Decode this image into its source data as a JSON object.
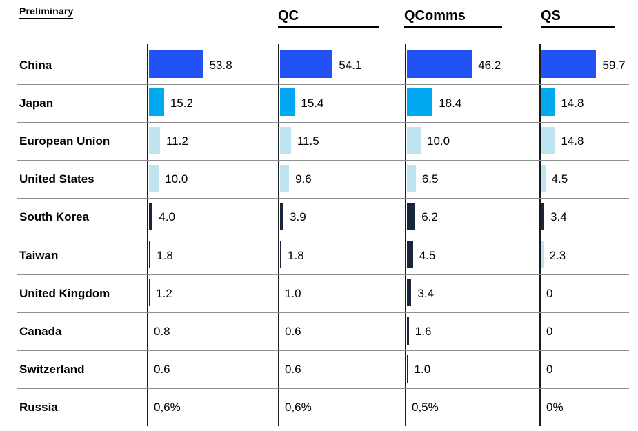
{
  "preliminary_label": "Preliminary",
  "palette": {
    "royal": "#2252F5",
    "cyan": "#00A8F0",
    "light": "#BDE4EF",
    "navy": "#18263C"
  },
  "chart_data": {
    "type": "bar",
    "orientation": "horizontal",
    "title": "Preliminary",
    "xlabel": "",
    "ylabel": "",
    "legend": false,
    "grid": "row-separators",
    "value_unit": "percent share",
    "categories": [
      "China",
      "Japan",
      "European Union",
      "United States",
      "South Korea",
      "Taiwan",
      "United Kingdom",
      "Canada",
      "Switzerland",
      "Russia"
    ],
    "series": [
      {
        "name": "Preliminary",
        "header": "",
        "values": [
          53.8,
          15.2,
          11.2,
          10.0,
          4.0,
          1.8,
          1.2,
          0.8,
          0.6,
          0.6
        ],
        "labels": [
          "53.8",
          "15.2",
          "11.2",
          "10.0",
          "4.0",
          "1.8",
          "1.2",
          "0.8",
          "0.6",
          "0,6%"
        ],
        "colors": [
          "royal",
          "cyan",
          "light",
          "light",
          "navy",
          "navy",
          "navy",
          "navy",
          "navy",
          "navy"
        ]
      },
      {
        "name": "QC",
        "header": "QC",
        "values": [
          54.1,
          15.4,
          11.5,
          9.6,
          3.9,
          1.8,
          1.0,
          0.6,
          0.6,
          0.6
        ],
        "labels": [
          "54.1",
          "15.4",
          "11.5",
          "9.6",
          "3.9",
          "1.8",
          "1.0",
          "0.6",
          "0.6",
          "0,6%"
        ],
        "colors": [
          "royal",
          "cyan",
          "light",
          "light",
          "navy",
          "navy",
          "navy",
          "navy",
          "navy",
          "navy"
        ]
      },
      {
        "name": "QComms",
        "header": "QComms",
        "values": [
          46.2,
          18.4,
          10.0,
          6.5,
          6.2,
          4.5,
          3.4,
          1.6,
          1.0,
          0.5
        ],
        "labels": [
          "46.2",
          "18.4",
          "10.0",
          "6.5",
          "6.2",
          "4.5",
          "3.4",
          "1.6",
          "1.0",
          "0,5%"
        ],
        "colors": [
          "royal",
          "cyan",
          "light",
          "light",
          "navy",
          "navy",
          "navy",
          "navy",
          "navy",
          "navy"
        ]
      },
      {
        "name": "QS",
        "header": "QS",
        "values": [
          59.7,
          14.8,
          14.8,
          4.5,
          3.4,
          2.3,
          0,
          0,
          0,
          0
        ],
        "labels": [
          "59.7",
          "14.8",
          "14.8",
          "4.5",
          "3.4",
          "2.3",
          "0",
          "0",
          "0",
          "0%"
        ],
        "colors": [
          "royal",
          "cyan",
          "light",
          "light",
          "navy",
          "light",
          "navy",
          "navy",
          "navy",
          "navy"
        ]
      }
    ]
  }
}
